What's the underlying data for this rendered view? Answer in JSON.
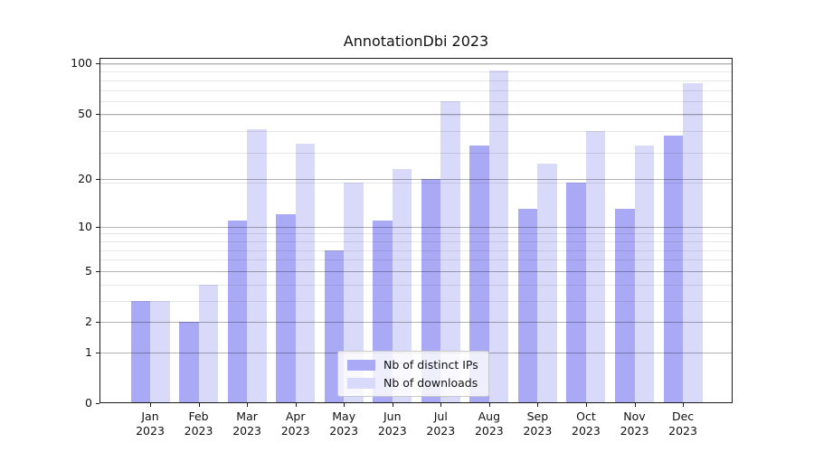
{
  "chart_data": {
    "type": "bar",
    "title": "AnnotationDbi 2023",
    "categories": [
      "Jan",
      "Feb",
      "Mar",
      "Apr",
      "May",
      "Jun",
      "Jul",
      "Aug",
      "Sep",
      "Oct",
      "Nov",
      "Dec"
    ],
    "year_label": "2023",
    "series": [
      {
        "name": "Nb of distinct IPs",
        "color": "#a9a9f6",
        "values": [
          3,
          2,
          11,
          12,
          7,
          11,
          20,
          32,
          13,
          19,
          13,
          37
        ]
      },
      {
        "name": "Nb of downloads",
        "color": "#d9d9f9",
        "values": [
          3,
          4,
          40,
          33,
          19,
          23,
          59,
          90,
          25,
          39,
          32,
          76
        ]
      }
    ],
    "yscale": "log1p",
    "ylim": [
      0,
      107.7
    ],
    "y_major_ticks": [
      0,
      1,
      2,
      5,
      10,
      20,
      50,
      100
    ],
    "y_minor_gridlines": [
      3,
      4,
      6,
      7,
      8,
      9,
      19,
      29,
      39,
      49,
      59,
      69,
      79,
      89,
      99
    ],
    "grid": "on",
    "legend_position": "lower center",
    "axis_color": "#1a1a1a",
    "background_color": "#ffffff"
  }
}
